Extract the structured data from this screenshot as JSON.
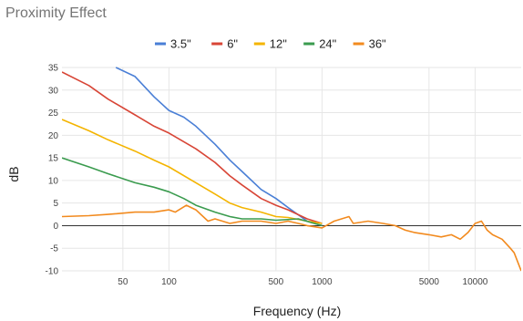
{
  "chart_data": {
    "type": "line",
    "title": "Proximity Effect",
    "xlabel": "Frequency (Hz)",
    "ylabel": "dB",
    "x_scale": "log",
    "xlim": [
      20,
      20000
    ],
    "ylim": [
      -10,
      35
    ],
    "x_ticks": [
      50,
      100,
      500,
      1000,
      5000,
      10000
    ],
    "x_tick_labels": [
      "50",
      "100",
      "500",
      "1000",
      "5000",
      "10000"
    ],
    "y_ticks": [
      -10,
      -5,
      0,
      5,
      10,
      15,
      20,
      25,
      30,
      35
    ],
    "y_tick_labels": [
      "-10",
      "-5",
      "0",
      "5",
      "10",
      "15",
      "20",
      "25",
      "30",
      "35"
    ],
    "grid": true,
    "legend_position": "top",
    "series": [
      {
        "name": "3.5\"",
        "color": "#4a7fd6",
        "points": [
          [
            45,
            35
          ],
          [
            60,
            33
          ],
          [
            80,
            28.5
          ],
          [
            100,
            25.5
          ],
          [
            125,
            24
          ],
          [
            150,
            22
          ],
          [
            200,
            18
          ],
          [
            250,
            14.5
          ],
          [
            300,
            12
          ],
          [
            400,
            8
          ],
          [
            500,
            6
          ],
          [
            600,
            4
          ],
          [
            800,
            1
          ],
          [
            1000,
            0
          ]
        ]
      },
      {
        "name": "6\"",
        "color": "#d84536",
        "points": [
          [
            20,
            34
          ],
          [
            30,
            31
          ],
          [
            40,
            28
          ],
          [
            60,
            24.5
          ],
          [
            80,
            22
          ],
          [
            100,
            20.5
          ],
          [
            150,
            17
          ],
          [
            200,
            14
          ],
          [
            250,
            11
          ],
          [
            300,
            9
          ],
          [
            400,
            6
          ],
          [
            500,
            4.5
          ],
          [
            600,
            3.5
          ],
          [
            800,
            1.5
          ],
          [
            1000,
            0.5
          ]
        ]
      },
      {
        "name": "12\"",
        "color": "#f4b400",
        "points": [
          [
            20,
            23.5
          ],
          [
            30,
            21
          ],
          [
            40,
            19
          ],
          [
            60,
            16.5
          ],
          [
            80,
            14.5
          ],
          [
            100,
            13
          ],
          [
            150,
            9.5
          ],
          [
            200,
            7
          ],
          [
            250,
            5
          ],
          [
            300,
            4
          ],
          [
            400,
            3
          ],
          [
            500,
            2
          ],
          [
            600,
            1.8
          ],
          [
            800,
            1
          ],
          [
            1000,
            0.5
          ]
        ]
      },
      {
        "name": "24\"",
        "color": "#3a9b4e",
        "points": [
          [
            20,
            15
          ],
          [
            30,
            13
          ],
          [
            40,
            11.5
          ],
          [
            60,
            9.5
          ],
          [
            80,
            8.5
          ],
          [
            100,
            7.5
          ],
          [
            125,
            6
          ],
          [
            150,
            4.5
          ],
          [
            200,
            3
          ],
          [
            250,
            2
          ],
          [
            300,
            1.5
          ],
          [
            400,
            1.5
          ],
          [
            500,
            1.2
          ],
          [
            700,
            1.5
          ],
          [
            1000,
            0
          ]
        ]
      },
      {
        "name": "36\"",
        "color": "#f28a1e",
        "points": [
          [
            20,
            2
          ],
          [
            30,
            2.2
          ],
          [
            40,
            2.5
          ],
          [
            60,
            3
          ],
          [
            80,
            3
          ],
          [
            100,
            3.5
          ],
          [
            110,
            3
          ],
          [
            130,
            4.5
          ],
          [
            150,
            3.5
          ],
          [
            180,
            1
          ],
          [
            200,
            1.5
          ],
          [
            250,
            0.5
          ],
          [
            300,
            1
          ],
          [
            400,
            1
          ],
          [
            500,
            0.5
          ],
          [
            600,
            1
          ],
          [
            700,
            0.5
          ],
          [
            800,
            0
          ],
          [
            1000,
            -0.5
          ],
          [
            1200,
            1
          ],
          [
            1500,
            2
          ],
          [
            1600,
            0.5
          ],
          [
            2000,
            1
          ],
          [
            2500,
            0.5
          ],
          [
            3000,
            0
          ],
          [
            3500,
            -1
          ],
          [
            4000,
            -1.5
          ],
          [
            5000,
            -2
          ],
          [
            6000,
            -2.5
          ],
          [
            7000,
            -2
          ],
          [
            8000,
            -3
          ],
          [
            9000,
            -1.5
          ],
          [
            10000,
            0.5
          ],
          [
            11000,
            1
          ],
          [
            12000,
            -1
          ],
          [
            13000,
            -2
          ],
          [
            15000,
            -3
          ],
          [
            17000,
            -5
          ],
          [
            18000,
            -6
          ],
          [
            20000,
            -10
          ]
        ]
      }
    ]
  }
}
